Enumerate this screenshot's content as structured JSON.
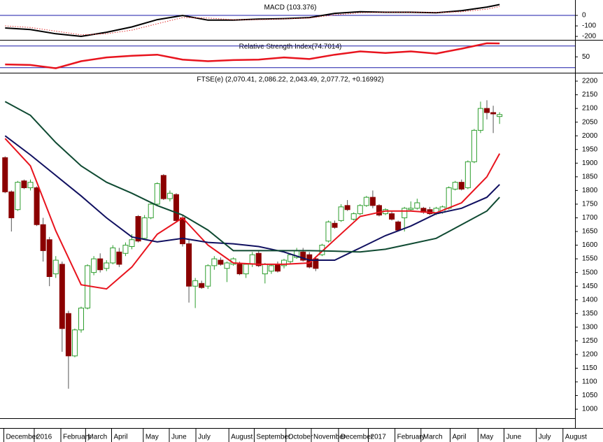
{
  "chart_data": [
    {
      "type": "line",
      "title": "MACD (103.376)",
      "xlim": [
        -0.8,
        89.9
      ],
      "ylim": [
        -233,
        127
      ],
      "yticks": [
        0,
        -100,
        -200
      ],
      "hlines": [
        0
      ],
      "hline_color": "#1a1aa8",
      "series": [
        {
          "color": "#000000",
          "style": "solid",
          "x": [
            0,
            4,
            8,
            12,
            16,
            20,
            24,
            28,
            32,
            36,
            40,
            44,
            48,
            52,
            56,
            60,
            64,
            68,
            72,
            76,
            78
          ],
          "values": [
            -120,
            -135,
            -175,
            -200,
            -160,
            -110,
            -40,
            0,
            -45,
            -45,
            -35,
            -30,
            -20,
            20,
            35,
            30,
            30,
            25,
            45,
            80,
            103.376
          ]
        },
        {
          "color": "#e03030",
          "style": "dotted",
          "x": [
            0,
            4,
            8,
            12,
            16,
            20,
            24,
            28,
            32,
            36,
            40,
            44,
            48,
            52,
            56,
            60,
            64,
            68,
            72,
            76,
            78
          ],
          "values": [
            -100,
            -115,
            -150,
            -185,
            -175,
            -140,
            -80,
            -20,
            -25,
            -40,
            -40,
            -33,
            -25,
            5,
            25,
            30,
            30,
            28,
            35,
            60,
            85
          ]
        }
      ]
    },
    {
      "type": "line",
      "title": "Relative Strength Index(74.7014)",
      "xlim": [
        -0.8,
        89.9
      ],
      "ylim": [
        22,
        80
      ],
      "yticks": [
        50
      ],
      "hlines": [
        70,
        30
      ],
      "hline_color": "#1a1aa8",
      "series": [
        {
          "color": "#e8141e",
          "style": "thick",
          "x": [
            0,
            4,
            8,
            12,
            16,
            20,
            24,
            28,
            32,
            36,
            40,
            44,
            48,
            52,
            56,
            60,
            64,
            68,
            72,
            76,
            78
          ],
          "values": [
            36,
            35,
            29,
            42,
            49,
            52,
            54,
            45,
            42,
            44,
            45,
            49,
            46,
            54,
            60,
            57,
            60,
            56,
            65,
            75,
            74.7014
          ]
        }
      ]
    },
    {
      "type": "candlestick",
      "title": "FTSE(e) (2,070.41, 2,086.22, 2,043.49, 2,077.72, +0.16992)",
      "xlim": [
        -0.8,
        89.9
      ],
      "ylim": [
        967,
        2223
      ],
      "yticks": [
        2200,
        2150,
        2100,
        2050,
        2000,
        1950,
        1900,
        1850,
        1800,
        1750,
        1700,
        1650,
        1600,
        1550,
        1500,
        1450,
        1400,
        1350,
        1300,
        1250,
        1200,
        1150,
        1100,
        1050,
        1000
      ],
      "xticks": [
        {
          "value": -0.2,
          "label": "December"
        },
        {
          "value": 4.6,
          "label": "2016"
        },
        {
          "value": 8.8,
          "label": "February"
        },
        {
          "value": 12.7,
          "label": "March"
        },
        {
          "value": 16.8,
          "label": "April"
        },
        {
          "value": 21.8,
          "label": "May"
        },
        {
          "value": 25.9,
          "label": "June"
        },
        {
          "value": 30.1,
          "label": "July"
        },
        {
          "value": 35.3,
          "label": "August"
        },
        {
          "value": 39.3,
          "label": "September"
        },
        {
          "value": 44.3,
          "label": "October"
        },
        {
          "value": 48.3,
          "label": "November"
        },
        {
          "value": 52.6,
          "label": "December"
        },
        {
          "value": 57.3,
          "label": "2017"
        },
        {
          "value": 61.5,
          "label": "February"
        },
        {
          "value": 65.6,
          "label": "March"
        },
        {
          "value": 70.2,
          "label": "April"
        },
        {
          "value": 74.6,
          "label": "May"
        },
        {
          "value": 78.7,
          "label": "June"
        },
        {
          "value": 83.8,
          "label": "July"
        },
        {
          "value": 88.0,
          "label": "August"
        }
      ],
      "up_color": "#2e9e2e",
      "down_color": "#8b0000",
      "x": [
        0,
        1,
        2,
        3,
        4,
        5,
        6,
        7,
        8,
        9,
        10,
        11,
        12,
        13,
        14,
        15,
        16,
        17,
        18,
        19,
        20,
        21,
        22,
        23,
        24,
        25,
        26,
        27,
        28,
        29,
        30,
        31,
        32,
        33,
        34,
        35,
        36,
        37,
        38,
        39,
        40,
        41,
        42,
        43,
        44,
        45,
        46,
        47,
        48,
        49,
        50,
        51,
        52,
        53,
        54,
        55,
        56,
        57,
        58,
        59,
        60,
        61,
        62,
        63,
        64,
        65,
        66,
        67,
        68,
        69,
        70,
        71,
        72,
        73,
        74,
        75,
        76,
        77,
        78
      ],
      "open": [
        1920,
        1795,
        1730,
        1835,
        1810,
        1810,
        1675,
        1620,
        1495,
        1530,
        1350,
        1195,
        1290,
        1370,
        1500,
        1550,
        1515,
        1535,
        1575,
        1570,
        1595,
        1705,
        1625,
        1700,
        1750,
        1855,
        1770,
        1785,
        1700,
        1605,
        1450,
        1460,
        1450,
        1525,
        1545,
        1515,
        1530,
        1530,
        1495,
        1530,
        1570,
        1495,
        1505,
        1530,
        1525,
        1540,
        1555,
        1575,
        1565,
        1550,
        1565,
        1615,
        1680,
        1690,
        1745,
        1695,
        1715,
        1745,
        1775,
        1745,
        1715,
        1715,
        1685,
        1700,
        1730,
        1735,
        1735,
        1730,
        1715,
        1720,
        1735,
        1805,
        1830,
        1810,
        1905,
        2020,
        2100,
        2085,
        2070.41
      ],
      "high": [
        1925,
        1800,
        1835,
        1840,
        1840,
        1815,
        1700,
        1630,
        1560,
        1540,
        1360,
        1295,
        1375,
        1530,
        1560,
        1570,
        1545,
        1600,
        1590,
        1610,
        1640,
        1710,
        1710,
        1755,
        1830,
        1860,
        1800,
        1790,
        1710,
        1620,
        1480,
        1470,
        1530,
        1560,
        1555,
        1540,
        1555,
        1540,
        1535,
        1575,
        1580,
        1535,
        1530,
        1540,
        1550,
        1570,
        1590,
        1590,
        1575,
        1555,
        1605,
        1690,
        1690,
        1750,
        1765,
        1720,
        1750,
        1780,
        1800,
        1750,
        1735,
        1725,
        1690,
        1740,
        1760,
        1770,
        1740,
        1740,
        1740,
        1745,
        1815,
        1835,
        1840,
        1910,
        2025,
        2125,
        2130,
        2110,
        2086.22
      ],
      "low": [
        1790,
        1650,
        1725,
        1805,
        1800,
        1670,
        1540,
        1450,
        1480,
        1210,
        1075,
        1190,
        1280,
        1365,
        1490,
        1500,
        1505,
        1530,
        1520,
        1560,
        1585,
        1610,
        1620,
        1695,
        1745,
        1765,
        1760,
        1685,
        1595,
        1390,
        1370,
        1440,
        1440,
        1510,
        1525,
        1465,
        1525,
        1490,
        1480,
        1520,
        1520,
        1460,
        1495,
        1500,
        1515,
        1530,
        1550,
        1540,
        1515,
        1505,
        1560,
        1610,
        1660,
        1685,
        1725,
        1690,
        1710,
        1740,
        1735,
        1705,
        1710,
        1690,
        1650,
        1650,
        1725,
        1730,
        1715,
        1710,
        1710,
        1715,
        1730,
        1800,
        1800,
        1805,
        1900,
        2010,
        2060,
        2010,
        2043.49
      ],
      "close": [
        1795,
        1700,
        1830,
        1810,
        1830,
        1675,
        1580,
        1485,
        1545,
        1295,
        1195,
        1290,
        1370,
        1525,
        1550,
        1510,
        1535,
        1590,
        1530,
        1600,
        1620,
        1615,
        1700,
        1750,
        1825,
        1770,
        1790,
        1690,
        1605,
        1450,
        1470,
        1445,
        1525,
        1550,
        1530,
        1535,
        1550,
        1495,
        1530,
        1565,
        1525,
        1530,
        1525,
        1505,
        1545,
        1565,
        1580,
        1545,
        1520,
        1515,
        1600,
        1685,
        1665,
        1740,
        1730,
        1715,
        1745,
        1775,
        1745,
        1710,
        1730,
        1695,
        1655,
        1735,
        1735,
        1755,
        1720,
        1715,
        1735,
        1740,
        1810,
        1830,
        1805,
        1905,
        2020,
        2100,
        2085,
        2080,
        2077.72
      ],
      "series": [
        {
          "color": "#e8141e",
          "x": [
            0,
            4,
            8,
            12,
            16,
            20,
            24,
            28,
            32,
            36,
            40,
            44,
            48,
            52,
            56,
            60,
            64,
            68,
            72,
            76,
            78
          ],
          "values": [
            1990,
            1890,
            1652,
            1455,
            1440,
            1520,
            1640,
            1700,
            1600,
            1535,
            1530,
            1530,
            1535,
            1620,
            1705,
            1725,
            1725,
            1718,
            1755,
            1850,
            1935
          ]
        },
        {
          "color": "#101060",
          "x": [
            0,
            4,
            8,
            12,
            16,
            20,
            24,
            28,
            32,
            36,
            40,
            44,
            48,
            52,
            56,
            60,
            64,
            68,
            72,
            76,
            78
          ],
          "values": [
            2000,
            1930,
            1855,
            1780,
            1700,
            1630,
            1612,
            1625,
            1610,
            1605,
            1595,
            1575,
            1545,
            1545,
            1590,
            1635,
            1670,
            1715,
            1735,
            1775,
            1822
          ]
        },
        {
          "color": "#0f4a32",
          "x": [
            0,
            4,
            8,
            12,
            16,
            20,
            24,
            28,
            32,
            36,
            40,
            44,
            48,
            52,
            56,
            60,
            64,
            68,
            72,
            76,
            78
          ],
          "values": [
            2125,
            2075,
            1975,
            1890,
            1830,
            1790,
            1745,
            1710,
            1655,
            1580,
            1580,
            1580,
            1580,
            1578,
            1575,
            1585,
            1605,
            1625,
            1675,
            1725,
            1775
          ]
        }
      ]
    }
  ]
}
